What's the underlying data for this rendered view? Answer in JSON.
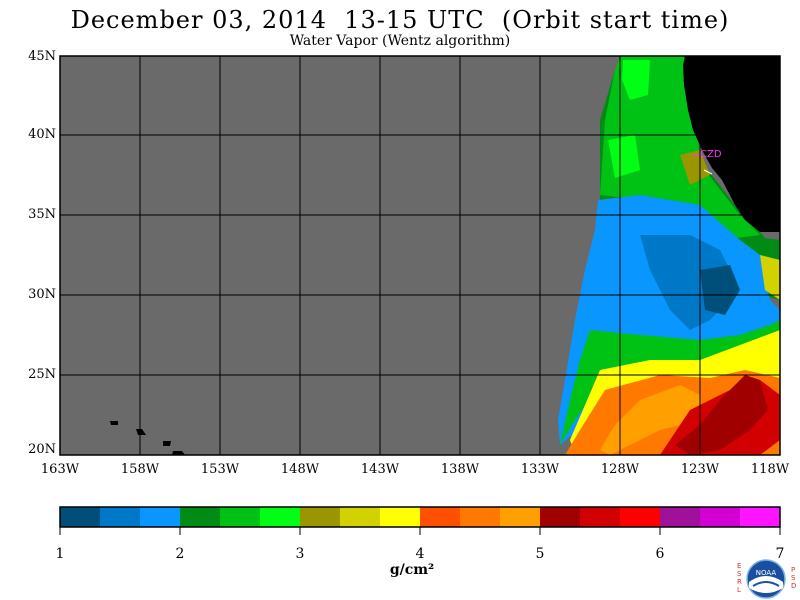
{
  "header": {
    "title": "December 03, 2014  13-15 UTC  (Orbit start time)",
    "subtitle": "Water Vapor (Wentz algorithm)"
  },
  "map": {
    "station_label": "CZD",
    "lat_labels": [
      "45N",
      "40N",
      "35N",
      "30N",
      "25N",
      "20N"
    ],
    "lon_labels": [
      "163W",
      "158W",
      "153W",
      "148W",
      "143W",
      "138W",
      "133W",
      "128W",
      "123W",
      "118W"
    ],
    "colors": {
      "no_data": "#6a6a6a",
      "land": "#000000",
      "station": "#ff33ff"
    }
  },
  "colorbar": {
    "tick_labels": [
      "1",
      "2",
      "3",
      "4",
      "5",
      "6",
      "7"
    ],
    "units": "g/cm²",
    "colors": [
      "#004f7a",
      "#0078c8",
      "#0a96ff",
      "#008c14",
      "#00c214",
      "#00ff14",
      "#9b9600",
      "#d2d200",
      "#ffff00",
      "#ff5000",
      "#ff7800",
      "#ffa000",
      "#a00000",
      "#d20000",
      "#ff0000",
      "#a0109b",
      "#d200d2",
      "#ff14ff"
    ]
  },
  "logo": {
    "left_letters": [
      "E",
      "S",
      "R",
      "L"
    ],
    "right_letters": [
      "P",
      "S",
      "D"
    ],
    "text": "NOAA"
  }
}
